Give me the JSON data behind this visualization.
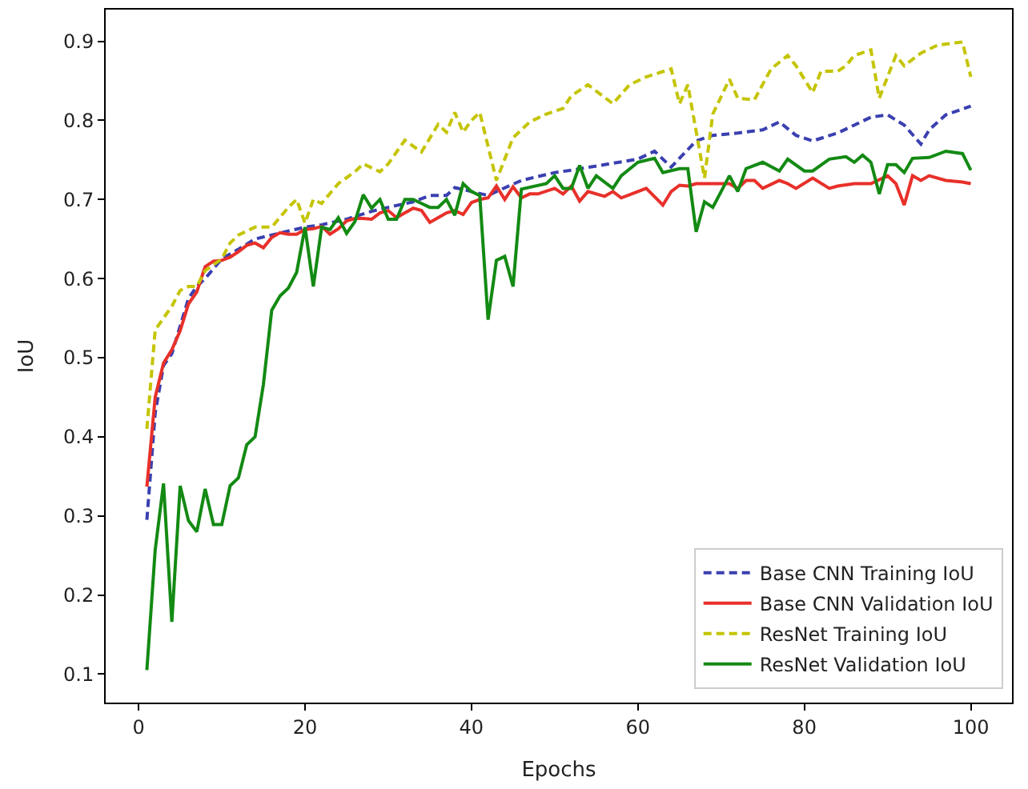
{
  "chart_data": {
    "type": "line",
    "xlabel": "Epochs",
    "ylabel": "IoU",
    "xlim": [
      -3.95,
      104.95
    ],
    "ylim": [
      0.064,
      0.94
    ],
    "xticks": [
      0,
      20,
      40,
      60,
      80,
      100
    ],
    "yticks": [
      0.1,
      0.2,
      0.3,
      0.4,
      0.5,
      0.6,
      0.7,
      0.8,
      0.9
    ],
    "legend": "bottom right",
    "marker": "none",
    "series": [
      {
        "name": "Base CNN Training IoU",
        "color": "#3a40b0",
        "line_style": "dashed",
        "x": [
          1,
          2,
          3,
          4,
          5,
          6,
          7,
          8,
          10,
          12,
          14,
          16,
          18,
          20,
          22,
          25,
          28,
          30,
          33,
          35,
          37,
          38,
          40,
          42,
          43,
          46,
          50,
          52,
          56,
          60,
          62,
          64,
          67,
          69,
          72,
          75,
          77,
          79,
          81,
          84,
          88,
          90,
          92,
          94,
          95,
          97,
          100
        ],
        "values": [
          0.295,
          0.43,
          0.49,
          0.505,
          0.54,
          0.575,
          0.59,
          0.6,
          0.625,
          0.637,
          0.65,
          0.655,
          0.66,
          0.665,
          0.668,
          0.675,
          0.685,
          0.69,
          0.697,
          0.705,
          0.705,
          0.715,
          0.71,
          0.705,
          0.71,
          0.724,
          0.734,
          0.737,
          0.744,
          0.751,
          0.761,
          0.741,
          0.774,
          0.781,
          0.784,
          0.788,
          0.798,
          0.781,
          0.774,
          0.784,
          0.804,
          0.807,
          0.794,
          0.77,
          0.788,
          0.807,
          0.818
        ]
      },
      {
        "name": "Base CNN Validation IoU",
        "color": "#e8302a",
        "line_style": "solid",
        "x": [
          1,
          2,
          3,
          4,
          5,
          6,
          7,
          8,
          9,
          10,
          11,
          12,
          13,
          14,
          15,
          16,
          17,
          18,
          19,
          20,
          21,
          22,
          23,
          24,
          25,
          26,
          27,
          28,
          29,
          30,
          31,
          32,
          33,
          34,
          35,
          36,
          37,
          38,
          39,
          40,
          41,
          42,
          43,
          44,
          45,
          46,
          47,
          48,
          50,
          51,
          52,
          53,
          54,
          56,
          57,
          58,
          60,
          61,
          63,
          64,
          65,
          66,
          67,
          68,
          69,
          71,
          72,
          73,
          74,
          75,
          77,
          78,
          79,
          81,
          83,
          84,
          86,
          88,
          90,
          91,
          92,
          93,
          94,
          95,
          97,
          99,
          100
        ],
        "values": [
          0.337,
          0.45,
          0.493,
          0.51,
          0.534,
          0.568,
          0.583,
          0.615,
          0.622,
          0.623,
          0.627,
          0.634,
          0.642,
          0.645,
          0.639,
          0.652,
          0.658,
          0.656,
          0.656,
          0.662,
          0.663,
          0.666,
          0.656,
          0.663,
          0.673,
          0.676,
          0.676,
          0.675,
          0.683,
          0.686,
          0.677,
          0.683,
          0.689,
          0.686,
          0.671,
          0.677,
          0.683,
          0.686,
          0.681,
          0.696,
          0.7,
          0.702,
          0.717,
          0.7,
          0.716,
          0.702,
          0.707,
          0.707,
          0.714,
          0.707,
          0.717,
          0.698,
          0.71,
          0.704,
          0.71,
          0.702,
          0.71,
          0.714,
          0.693,
          0.71,
          0.718,
          0.717,
          0.72,
          0.72,
          0.72,
          0.72,
          0.714,
          0.724,
          0.724,
          0.714,
          0.724,
          0.72,
          0.714,
          0.727,
          0.714,
          0.717,
          0.72,
          0.72,
          0.73,
          0.72,
          0.693,
          0.73,
          0.724,
          0.73,
          0.724,
          0.722,
          0.72
        ]
      },
      {
        "name": "ResNet Training IoU",
        "color": "#c4c400",
        "line_style": "dashed",
        "x": [
          1,
          2,
          3,
          4,
          5,
          6,
          7,
          8,
          10,
          11,
          12,
          14,
          16,
          18,
          19,
          20,
          21,
          22,
          24,
          26,
          27,
          29,
          30,
          32,
          34,
          36,
          37,
          38,
          39,
          40,
          41,
          43,
          45,
          47,
          49,
          51,
          52,
          54,
          57,
          59,
          61,
          64,
          65,
          66,
          68,
          69,
          71,
          72,
          74,
          76,
          78,
          79,
          81,
          82,
          84,
          85,
          86,
          88,
          89,
          90,
          91,
          92,
          94,
          96,
          99,
          100
        ],
        "values": [
          0.41,
          0.535,
          0.55,
          0.565,
          0.585,
          0.59,
          0.59,
          0.61,
          0.625,
          0.645,
          0.655,
          0.665,
          0.665,
          0.69,
          0.7,
          0.67,
          0.7,
          0.695,
          0.72,
          0.735,
          0.745,
          0.735,
          0.745,
          0.775,
          0.76,
          0.795,
          0.785,
          0.81,
          0.785,
          0.8,
          0.81,
          0.724,
          0.778,
          0.798,
          0.808,
          0.815,
          0.831,
          0.845,
          0.821,
          0.845,
          0.855,
          0.865,
          0.821,
          0.845,
          0.727,
          0.808,
          0.852,
          0.828,
          0.826,
          0.865,
          0.882,
          0.869,
          0.835,
          0.862,
          0.862,
          0.869,
          0.882,
          0.889,
          0.828,
          0.855,
          0.882,
          0.869,
          0.885,
          0.895,
          0.899,
          0.855
        ]
      },
      {
        "name": "ResNet Validation IoU",
        "color": "#138a13",
        "line_style": "solid",
        "x": [
          1,
          2,
          3,
          4,
          5,
          6,
          7,
          8,
          9,
          10,
          11,
          12,
          13,
          14,
          15,
          16,
          17,
          18,
          19,
          20,
          21,
          22,
          23,
          24,
          25,
          26,
          27,
          28,
          29,
          30,
          31,
          32,
          33,
          34,
          35,
          36,
          37,
          38,
          39,
          40,
          41,
          42,
          43,
          44,
          45,
          46,
          49,
          50,
          51,
          52,
          53,
          54,
          55,
          57,
          58,
          60,
          62,
          63,
          65,
          66,
          67,
          68,
          69,
          71,
          72,
          73,
          75,
          77,
          78,
          80,
          81,
          83,
          85,
          86,
          87,
          88,
          89,
          90,
          91,
          92,
          93,
          95,
          97,
          99,
          100
        ],
        "values": [
          0.105,
          0.257,
          0.341,
          0.166,
          0.338,
          0.294,
          0.28,
          0.334,
          0.289,
          0.289,
          0.338,
          0.348,
          0.39,
          0.4,
          0.466,
          0.56,
          0.578,
          0.588,
          0.608,
          0.665,
          0.59,
          0.665,
          0.662,
          0.677,
          0.657,
          0.672,
          0.706,
          0.689,
          0.7,
          0.675,
          0.675,
          0.7,
          0.7,
          0.695,
          0.69,
          0.69,
          0.7,
          0.68,
          0.72,
          0.71,
          0.705,
          0.548,
          0.623,
          0.628,
          0.59,
          0.713,
          0.72,
          0.73,
          0.714,
          0.714,
          0.743,
          0.714,
          0.73,
          0.714,
          0.73,
          0.747,
          0.752,
          0.734,
          0.739,
          0.739,
          0.659,
          0.697,
          0.69,
          0.73,
          0.71,
          0.739,
          0.747,
          0.736,
          0.751,
          0.736,
          0.736,
          0.751,
          0.754,
          0.747,
          0.756,
          0.747,
          0.707,
          0.744,
          0.744,
          0.734,
          0.752,
          0.753,
          0.761,
          0.758,
          0.737
        ]
      }
    ]
  }
}
